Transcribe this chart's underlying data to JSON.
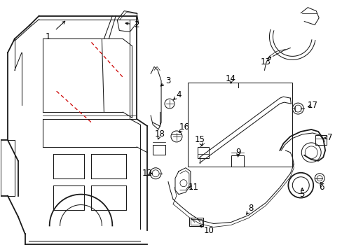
{
  "bg_color": "#ffffff",
  "lc": "#1a1a1a",
  "rc": "#cc0000",
  "fig_width": 4.89,
  "fig_height": 3.6,
  "dpi": 100,
  "fs": 8.5,
  "lw1": 1.3,
  "lw2": 0.75,
  "lw3": 0.55
}
